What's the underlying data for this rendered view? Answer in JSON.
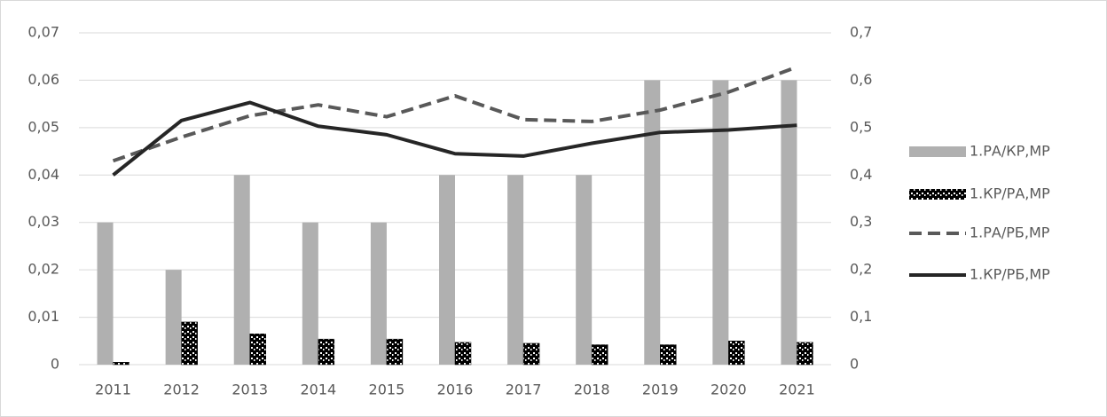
{
  "chart_data": {
    "type": "bar",
    "categories": [
      "2011",
      "2012",
      "2013",
      "2014",
      "2015",
      "2016",
      "2017",
      "2018",
      "2019",
      "2020",
      "2021"
    ],
    "series": [
      {
        "name": "1.РА/КР,МР",
        "type": "bar",
        "color": "#b0b0b0",
        "values": [
          0.03,
          0.02,
          0.04,
          0.03,
          0.03,
          0.04,
          0.04,
          0.04,
          0.06,
          0.06,
          0.06
        ]
      },
      {
        "name": "1.КР/РА,МР",
        "type": "bar",
        "color": "#000000",
        "pattern": "dotted",
        "values": [
          0.0005,
          0.009,
          0.0065,
          0.0054,
          0.0054,
          0.0047,
          0.0045,
          0.0042,
          0.0042,
          0.005,
          0.0047
        ]
      },
      {
        "name": "1.РА/РБ,МР",
        "type": "line",
        "axis": "y2",
        "dashed": true,
        "color": "#595959",
        "values": [
          0.43,
          0.48,
          0.525,
          0.548,
          0.523,
          0.567,
          0.517,
          0.513,
          0.537,
          0.575,
          0.628
        ]
      },
      {
        "name": "1.КР/РБ,МР",
        "type": "line",
        "axis": "y2",
        "dashed": false,
        "color": "#262626",
        "values": [
          0.4,
          0.515,
          0.553,
          0.503,
          0.485,
          0.445,
          0.44,
          0.467,
          0.49,
          0.495,
          0.505
        ]
      }
    ],
    "ylim": [
      0,
      0.07
    ],
    "yticks": [
      0,
      {
        "value": 0.01,
        "label": "0,01"
      },
      {
        "value": 0.02,
        "label": "0,02"
      },
      {
        "value": 0.03,
        "label": "0,03"
      },
      {
        "value": 0.04,
        "label": "0,04"
      },
      {
        "value": 0.05,
        "label": "0,05"
      },
      {
        "value": 0.06,
        "label": "0,06"
      },
      {
        "value": 0.07,
        "label": "0,07"
      }
    ],
    "y2lim": [
      0,
      0.7
    ],
    "y2ticks": [
      0,
      {
        "value": 0.1,
        "label": "0,1"
      },
      {
        "value": 0.2,
        "label": "0,2"
      },
      {
        "value": 0.3,
        "label": "0,3"
      },
      {
        "value": 0.4,
        "label": "0,4"
      },
      {
        "value": 0.5,
        "label": "0,5"
      },
      {
        "value": 0.6,
        "label": "0,6"
      },
      {
        "value": 0.7,
        "label": "0,7"
      }
    ],
    "grid": true,
    "legend": "right"
  }
}
